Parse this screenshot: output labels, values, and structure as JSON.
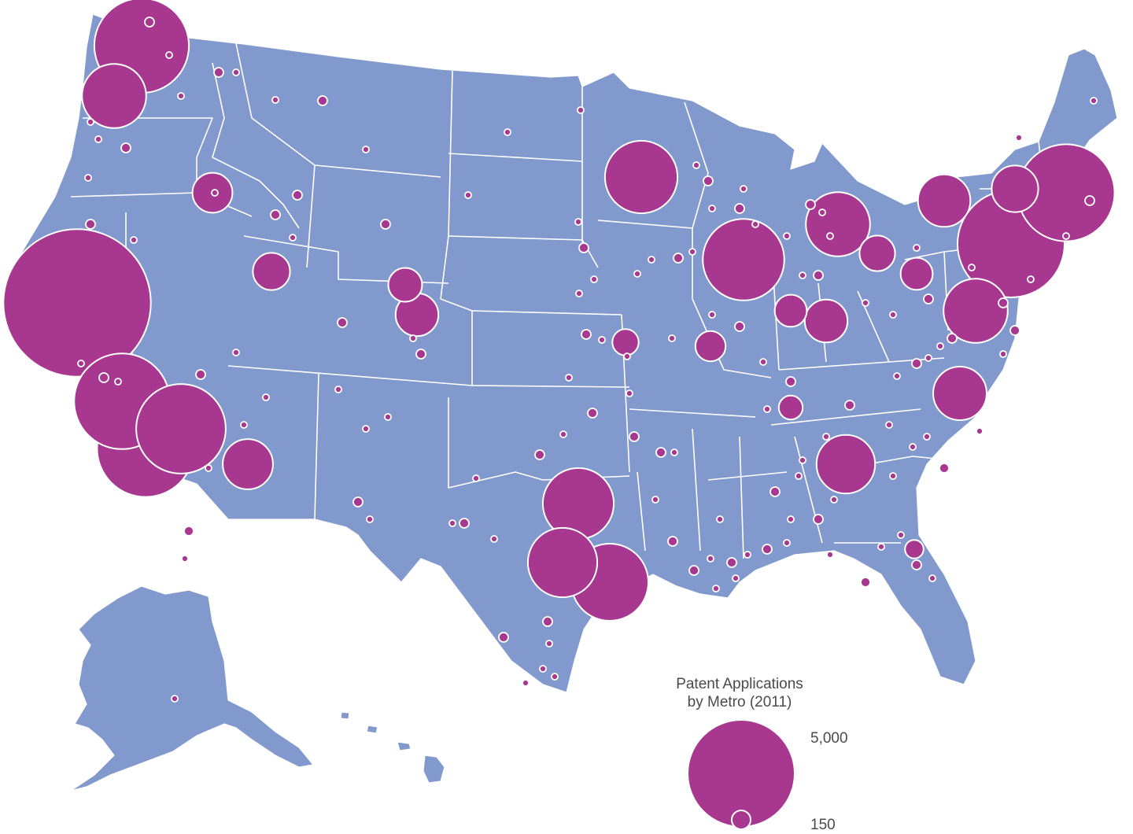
{
  "legend": {
    "title_line1": "Patent Applications",
    "title_line2": "by Metro (2011)",
    "max_label": "5,000",
    "min_label": "150",
    "max_value": 5000,
    "min_value": 150
  },
  "colors": {
    "land": "#8199cc",
    "bubble": "#a8378f",
    "outline": "#ffffff",
    "text": "#4a4a4a"
  },
  "metros": [
    {
      "name": "Seattle",
      "value": 3900
    },
    {
      "name": "Portland",
      "value": 1800
    },
    {
      "name": "San Francisco",
      "value": 9500
    },
    {
      "name": "San Jose",
      "value": 4000
    },
    {
      "name": "Los Angeles",
      "value": 4100
    },
    {
      "name": "San Diego",
      "value": 3500
    },
    {
      "name": "Phoenix",
      "value": 1100
    },
    {
      "name": "Boise",
      "value": 700
    },
    {
      "name": "Salt Lake City",
      "value": 600
    },
    {
      "name": "Denver",
      "value": 800
    },
    {
      "name": "Boulder",
      "value": 500
    },
    {
      "name": "Dallas",
      "value": 2200
    },
    {
      "name": "Austin",
      "value": 2100
    },
    {
      "name": "Houston",
      "value": 2600
    },
    {
      "name": "Minneapolis",
      "value": 2300
    },
    {
      "name": "Chicago",
      "value": 2900
    },
    {
      "name": "Detroit",
      "value": 1800
    },
    {
      "name": "Cleveland",
      "value": 550
    },
    {
      "name": "Pittsburgh",
      "value": 450
    },
    {
      "name": "Rochester",
      "value": 1200
    },
    {
      "name": "Albany",
      "value": 950
    },
    {
      "name": "Boston",
      "value": 4100
    },
    {
      "name": "New York",
      "value": 5000
    },
    {
      "name": "Philadelphia",
      "value": 1800
    },
    {
      "name": "Raleigh",
      "value": 1250
    },
    {
      "name": "Atlanta",
      "value": 1500
    },
    {
      "name": "Cincinnati",
      "value": 800
    },
    {
      "name": "Indianapolis",
      "value": 450
    },
    {
      "name": "St. Louis",
      "value": 400
    },
    {
      "name": "Kansas City",
      "value": 300
    },
    {
      "name": "Nashville",
      "value": 250
    },
    {
      "name": "Orlando",
      "value": 150
    }
  ]
}
